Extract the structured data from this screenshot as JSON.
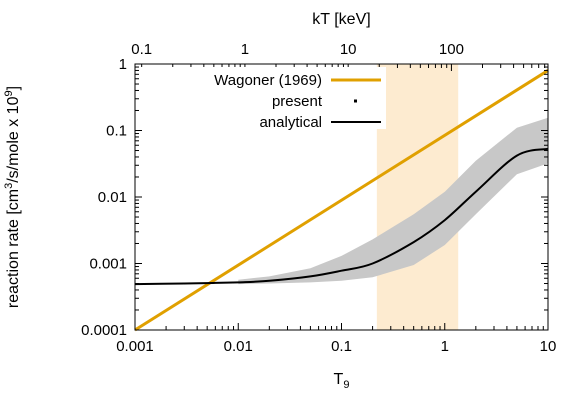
{
  "chart_data": {
    "type": "line",
    "xscale": "log",
    "yscale": "log",
    "xlim": [
      0.001,
      10
    ],
    "ylim": [
      0.0001,
      1
    ],
    "xlabel": "T",
    "xlabel_sub": "9",
    "ylabel_prefix": "reaction rate [cm",
    "ylabel_sup1": "3",
    "ylabel_mid": "/s/mole x 10",
    "ylabel_sup2": "9",
    "ylabel_suffix": "]",
    "top_axis_label": "kT [keV]",
    "x_ticks": [
      0.001,
      0.01,
      0.1,
      1,
      10
    ],
    "x_tick_labels": [
      "0.001",
      "0.01",
      "0.1",
      "1",
      "10"
    ],
    "y_ticks": [
      0.0001,
      0.001,
      0.01,
      0.1,
      1
    ],
    "y_tick_labels": [
      "0.0001",
      "0.001",
      "0.01",
      "0.1",
      "1"
    ],
    "top_ticks_kev": [
      0.1,
      1,
      10,
      100
    ],
    "top_tick_labels": [
      "0.1",
      "1",
      "10",
      "100"
    ],
    "kev_per_T9": 86.17,
    "highlight_band": {
      "x_from": 0.22,
      "x_to": 1.35,
      "color": "#fdebd0"
    },
    "legend_position": "top-right",
    "grid": false,
    "colors": {
      "wagoner": "#e0a000",
      "present": "#000000",
      "band": "#c8c8c8"
    },
    "series": [
      {
        "name": "Wagoner (1969)",
        "style": "line",
        "x": [
          0.001,
          10
        ],
        "y": [
          0.0001,
          0.8
        ]
      },
      {
        "name": "present",
        "style": "band",
        "x": [
          0.01,
          0.02,
          0.05,
          0.1,
          0.2,
          0.5,
          1,
          2,
          5,
          10
        ],
        "y_low": [
          0.00049,
          0.0005,
          0.00052,
          0.00055,
          0.00062,
          0.00095,
          0.0019,
          0.0055,
          0.022,
          0.032
        ],
        "y_high": [
          0.00057,
          0.00064,
          0.00085,
          0.0013,
          0.0023,
          0.0055,
          0.012,
          0.035,
          0.11,
          0.155
        ]
      },
      {
        "name": "analytical",
        "style": "line",
        "x": [
          0.001,
          0.003,
          0.006,
          0.01,
          0.02,
          0.05,
          0.1,
          0.2,
          0.5,
          1,
          2,
          5,
          10
        ],
        "y": [
          0.00049,
          0.0005,
          0.00051,
          0.00052,
          0.00055,
          0.00064,
          0.00078,
          0.001,
          0.0021,
          0.0045,
          0.012,
          0.042,
          0.053
        ]
      }
    ]
  }
}
